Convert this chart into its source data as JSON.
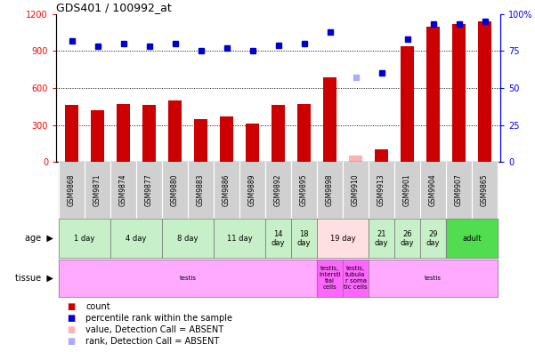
{
  "title": "GDS401 / 100992_at",
  "samples": [
    "GSM9868",
    "GSM9871",
    "GSM9874",
    "GSM9877",
    "GSM9880",
    "GSM9883",
    "GSM9886",
    "GSM9889",
    "GSM9892",
    "GSM9895",
    "GSM9898",
    "GSM9910",
    "GSM9913",
    "GSM9901",
    "GSM9904",
    "GSM9907",
    "GSM9865"
  ],
  "bar_values": [
    460,
    420,
    470,
    460,
    500,
    350,
    370,
    310,
    460,
    470,
    690,
    55,
    100,
    940,
    1100,
    1120,
    1140
  ],
  "bar_absent": [
    false,
    false,
    false,
    false,
    false,
    false,
    false,
    false,
    false,
    false,
    false,
    true,
    false,
    false,
    false,
    false,
    false
  ],
  "blue_values": [
    82,
    78,
    80,
    78,
    80,
    75,
    77,
    75,
    79,
    80,
    88,
    57,
    60,
    83,
    93,
    93,
    95
  ],
  "blue_absent": [
    false,
    false,
    false,
    false,
    false,
    false,
    false,
    false,
    false,
    false,
    false,
    true,
    false,
    false,
    false,
    false,
    false
  ],
  "ylim_left": [
    0,
    1200
  ],
  "ylim_right": [
    0,
    100
  ],
  "yticks_left": [
    0,
    300,
    600,
    900,
    1200
  ],
  "yticks_right": [
    0,
    25,
    50,
    75,
    100
  ],
  "bar_color": "#cc0000",
  "bar_absent_color": "#ffb0b0",
  "blue_color": "#0000cc",
  "blue_absent_color": "#aaaaff",
  "age_groups": [
    {
      "label": "1 day",
      "start": 0,
      "end": 2,
      "color": "#c8f0c8"
    },
    {
      "label": "4 day",
      "start": 2,
      "end": 4,
      "color": "#c8f0c8"
    },
    {
      "label": "8 day",
      "start": 4,
      "end": 6,
      "color": "#c8f0c8"
    },
    {
      "label": "11 day",
      "start": 6,
      "end": 8,
      "color": "#c8f0c8"
    },
    {
      "label": "14\nday",
      "start": 8,
      "end": 9,
      "color": "#c8f0c8"
    },
    {
      "label": "18\nday",
      "start": 9,
      "end": 10,
      "color": "#c8f0c8"
    },
    {
      "label": "19 day",
      "start": 10,
      "end": 12,
      "color": "#ffe0e0"
    },
    {
      "label": "21\nday",
      "start": 12,
      "end": 13,
      "color": "#c8f0c8"
    },
    {
      "label": "26\nday",
      "start": 13,
      "end": 14,
      "color": "#c8f0c8"
    },
    {
      "label": "29\nday",
      "start": 14,
      "end": 15,
      "color": "#c8f0c8"
    },
    {
      "label": "adult",
      "start": 15,
      "end": 17,
      "color": "#50dd50"
    }
  ],
  "tissue_groups": [
    {
      "label": "testis",
      "start": 0,
      "end": 10,
      "color": "#ffaaff"
    },
    {
      "label": "testis,\nintersti\ntial\ncells",
      "start": 10,
      "end": 11,
      "color": "#ff66ff"
    },
    {
      "label": "testis,\ntubula\nr soma\ntic cells",
      "start": 11,
      "end": 12,
      "color": "#ff66ff"
    },
    {
      "label": "testis",
      "start": 12,
      "end": 17,
      "color": "#ffaaff"
    }
  ],
  "legend_labels": [
    "count",
    "percentile rank within the sample",
    "value, Detection Call = ABSENT",
    "rank, Detection Call = ABSENT"
  ],
  "legend_colors": [
    "#cc0000",
    "#0000cc",
    "#ffb0b0",
    "#aaaaff"
  ],
  "xticklabel_bg": "#d0d0d0",
  "bg_color": "#ffffff"
}
